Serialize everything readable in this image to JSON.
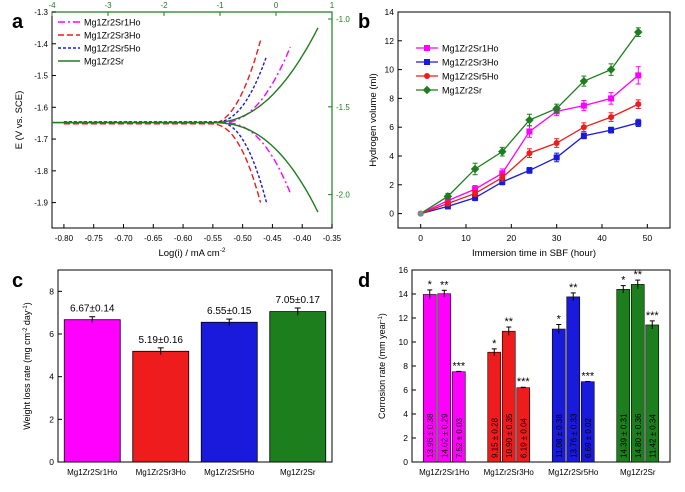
{
  "colors": {
    "magenta": "#ff00ff",
    "blue": "#1a1adc",
    "red": "#ee1c1c",
    "green": "#1d7e1d",
    "axis": "#000000"
  },
  "chart_data": [
    {
      "panel": "a",
      "type": "line",
      "xlabel": "Log(i) / mA cm",
      "xlabel_sup": "-2",
      "ylabel": "E (V vs. SCE)",
      "xlim": [
        -0.82,
        -0.35
      ],
      "ylim": [
        -1.98,
        -1.3
      ],
      "x_ticks": [
        -0.8,
        -0.75,
        -0.7,
        -0.65,
        -0.6,
        -0.55,
        -0.5,
        -0.45,
        -0.4,
        -0.35
      ],
      "y_ticks": [
        -1.9,
        -1.8,
        -1.7,
        -1.6,
        -1.5,
        -1.4,
        -1.3
      ],
      "top_axis": {
        "color": "green",
        "range": [
          -4,
          1
        ],
        "ticks": [
          -4,
          -3,
          -2,
          -1,
          0,
          1
        ]
      },
      "right_axis": {
        "color": "green",
        "range": [
          -2.19,
          -0.96
        ],
        "ticks": [
          -2.0,
          -1.5,
          -1.0
        ]
      },
      "legend_position": "top-left",
      "series": [
        {
          "name": "Mg1Zr2Sr1Ho",
          "color": "magenta",
          "dash": "dashdot",
          "axis": "bottom-left",
          "ecorr": -1.648,
          "icorr": -0.535,
          "x_end": -0.42,
          "anodic_top": -1.41,
          "cathodic_bottom": -1.87
        },
        {
          "name": "Mg1Zr2Sr3Ho",
          "color": "red",
          "dash": "dashed",
          "axis": "bottom-left",
          "ecorr": -1.652,
          "icorr": -0.555,
          "x_end": -0.47,
          "anodic_top": -1.39,
          "cathodic_bottom": -1.9
        },
        {
          "name": "Mg1Zr2Sr5Ho",
          "color": "blue",
          "dash": "dotted",
          "axis": "bottom-left",
          "ecorr": -1.646,
          "icorr": -0.545,
          "x_end": -0.46,
          "anodic_top": -1.44,
          "cathodic_bottom": -1.9
        },
        {
          "name": "Mg1Zr2Sr",
          "color": "green",
          "dash": "solid",
          "axis": "top-right",
          "ecorr": -1.59,
          "icorr": -1.15,
          "x_end": 0.75,
          "anodic_top": -1.05,
          "cathodic_bottom": -2.1
        }
      ]
    },
    {
      "panel": "b",
      "type": "line",
      "xlabel": "Immersion time in SBF (hour)",
      "ylabel": "Hydrogen volume (ml)",
      "xlim": [
        -5,
        55
      ],
      "ylim": [
        -1,
        14
      ],
      "x_ticks": [
        0,
        10,
        20,
        30,
        40,
        50
      ],
      "y_ticks": [
        0,
        2,
        4,
        6,
        8,
        10,
        12,
        14
      ],
      "x": [
        0,
        6,
        12,
        18,
        24,
        30,
        36,
        42,
        48
      ],
      "legend_position": "top-left",
      "series": [
        {
          "name": "Mg1Zr2Sr1Ho",
          "color": "magenta",
          "values": [
            0,
            0.9,
            1.7,
            2.8,
            5.7,
            7.1,
            7.5,
            8.0,
            9.6
          ],
          "errors": [
            0.1,
            0.2,
            0.25,
            0.3,
            0.4,
            0.3,
            0.35,
            0.4,
            0.6
          ]
        },
        {
          "name": "Mg1Zr2Sr3Ho",
          "color": "blue",
          "values": [
            0,
            0.5,
            1.1,
            2.2,
            3.0,
            3.9,
            5.4,
            5.8,
            6.3
          ],
          "errors": [
            0.1,
            0.15,
            0.2,
            0.2,
            0.2,
            0.3,
            0.2,
            0.2,
            0.25
          ]
        },
        {
          "name": "Mg1Zr2Sr5Ho",
          "color": "red",
          "values": [
            0,
            0.7,
            1.4,
            2.5,
            4.2,
            4.9,
            6.0,
            6.7,
            7.6
          ],
          "errors": [
            0.1,
            0.15,
            0.2,
            0.25,
            0.3,
            0.3,
            0.3,
            0.3,
            0.3
          ]
        },
        {
          "name": "Mg1Zr2Sr",
          "color": "green",
          "values": [
            0,
            1.2,
            3.1,
            4.3,
            6.5,
            7.3,
            9.2,
            10.0,
            12.6
          ],
          "errors": [
            0.1,
            0.2,
            0.4,
            0.3,
            0.4,
            0.3,
            0.35,
            0.4,
            0.3
          ]
        }
      ]
    },
    {
      "panel": "c",
      "type": "bar",
      "ylabel": "Weight loss rate (mg cm",
      "ylabel_sup1": "-2",
      "ylabel_mid": " day",
      "ylabel_sup2": "-1",
      "ylabel_end": ")",
      "ylim": [
        0,
        9
      ],
      "y_ticks": [
        0,
        2,
        4,
        6,
        8
      ],
      "categories": [
        "Mg1Zr2Sr1Ho",
        "Mg1Zr2Sr3Ho",
        "Mg1Zr2Sr5Ho",
        "Mg1Zr2Sr"
      ],
      "values": [
        6.67,
        5.19,
        6.55,
        7.05
      ],
      "errors": [
        0.14,
        0.16,
        0.15,
        0.17
      ],
      "colors": [
        "magenta",
        "red",
        "blue",
        "green"
      ],
      "labels": [
        "6.67±0.14",
        "5.19±0.16",
        "6.55±0.15",
        "7.05±0.17"
      ]
    },
    {
      "panel": "d",
      "type": "bar",
      "ylabel": "Corrosion rate (mm year",
      "ylabel_sup": "-1",
      "ylabel_end": ")",
      "ylim": [
        0,
        16
      ],
      "y_ticks": [
        0,
        2,
        4,
        6,
        8,
        10,
        12,
        14,
        16
      ],
      "categories": [
        "Mg1Zr2Sr1Ho",
        "Mg1Zr2Sr3Ho",
        "Mg1Zr2Sr5Ho",
        "Mg1Zr2Sr"
      ],
      "colors": [
        "magenta",
        "red",
        "blue",
        "green"
      ],
      "groups": [
        {
          "values": [
            13.96,
            14.02,
            7.52
          ],
          "errors": [
            0.38,
            0.29,
            0.03
          ],
          "labels": [
            "13.96 ± 0.38",
            "14.02 ± 0.29",
            "7.52 ± 0.03"
          ],
          "marks": [
            "*",
            "**",
            "***"
          ]
        },
        {
          "values": [
            9.15,
            10.9,
            6.19
          ],
          "errors": [
            0.28,
            0.35,
            0.04
          ],
          "labels": [
            "9.15 ± 0.28",
            "10.90 ± 0.35",
            "6.19 ± 0.04"
          ],
          "marks": [
            "*",
            "**",
            "***"
          ]
        },
        {
          "values": [
            11.08,
            13.76,
            6.69
          ],
          "errors": [
            0.38,
            0.33,
            0.02
          ],
          "labels": [
            "11.08 ± 0.38",
            "13.76 ± 0.33",
            "6.69 ± 0.02"
          ],
          "marks": [
            "*",
            "**",
            "***"
          ]
        },
        {
          "values": [
            14.39,
            14.8,
            11.42
          ],
          "errors": [
            0.31,
            0.36,
            0.34
          ],
          "labels": [
            "14.39 ± 0.31",
            "14.80 ± 0.36",
            "11.42 ± 0.34"
          ],
          "marks": [
            "*",
            "**",
            "***"
          ]
        }
      ]
    }
  ]
}
